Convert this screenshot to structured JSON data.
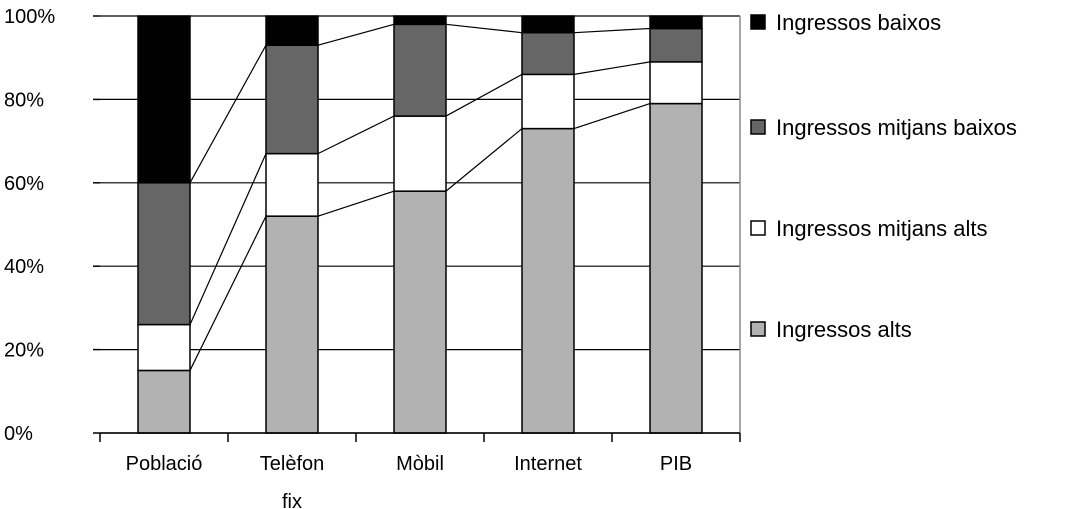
{
  "chart_data": {
    "type": "bar",
    "stacked": true,
    "percent": true,
    "title": "",
    "xlabel": "",
    "ylabel": "",
    "categories": [
      [
        "Població"
      ],
      [
        "Telèfon",
        "fix"
      ],
      [
        "Mòbil"
      ],
      [
        "Internet"
      ],
      [
        "PIB"
      ]
    ],
    "y_ticks": [
      "0%",
      "20%",
      "40%",
      "60%",
      "80%",
      "100%"
    ],
    "ylim": [
      0,
      100
    ],
    "grid": true,
    "legend_position": "right",
    "series": [
      {
        "name": "Ingressos alts",
        "color": "#b2b2b2",
        "values": [
          15,
          52,
          58,
          73,
          79
        ]
      },
      {
        "name": "Ingressos mitjans alts",
        "color": "#ffffff",
        "values": [
          11,
          15,
          18,
          13,
          10
        ]
      },
      {
        "name": "Ingressos mitjans baixos",
        "color": "#666666",
        "values": [
          34,
          26,
          22,
          10,
          8
        ]
      },
      {
        "name": "Ingressos baixos",
        "color": "#000000",
        "values": [
          40,
          7,
          2,
          4,
          3
        ]
      }
    ],
    "legend_order": [
      "Ingressos baixos",
      "Ingressos mitjans baixos",
      "Ingressos mitjans alts",
      "Ingressos alts"
    ]
  }
}
